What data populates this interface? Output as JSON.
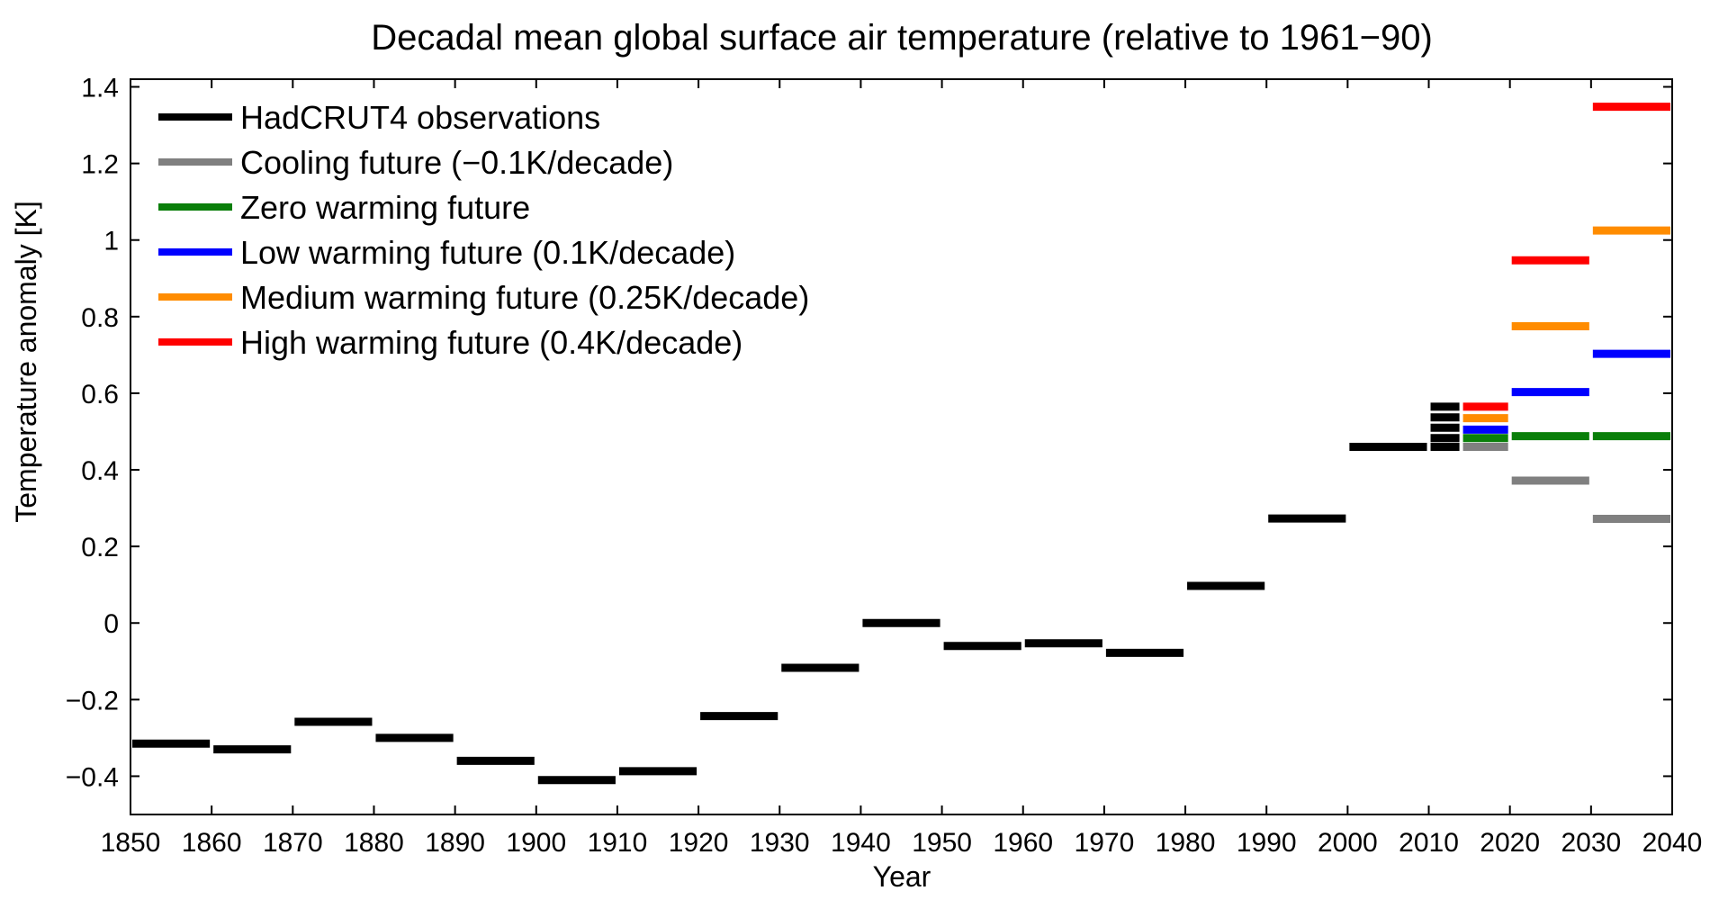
{
  "chart_data": {
    "type": "line",
    "title": "Decadal mean global surface air temperature (relative to 1961−90)",
    "xlabel": "Year",
    "ylabel": "Temperature anomaly  [K]",
    "xlim": [
      1850,
      2040
    ],
    "ylim": [
      -0.5,
      1.42
    ],
    "xticks": [
      1850,
      1860,
      1870,
      1880,
      1890,
      1900,
      1910,
      1920,
      1930,
      1940,
      1950,
      1960,
      1970,
      1980,
      1990,
      2000,
      2010,
      2020,
      2030,
      2040
    ],
    "yticks": [
      -0.4,
      -0.2,
      0,
      0.2,
      0.4,
      0.6,
      0.8,
      1,
      1.2,
      1.4
    ],
    "ytick_labels": [
      "−0.4",
      "−0.2",
      "0",
      "0.2",
      "0.4",
      "0.6",
      "0.8",
      "1",
      "1.2",
      "1.4"
    ],
    "grid": false,
    "legend_position": "top-left",
    "series": [
      {
        "name": "HadCRUT4 observations",
        "color": "#000000",
        "segments": [
          {
            "x": [
              1850,
              1860
            ],
            "y": -0.315
          },
          {
            "x": [
              1860,
              1870
            ],
            "y": -0.33
          },
          {
            "x": [
              1870,
              1880
            ],
            "y": -0.258
          },
          {
            "x": [
              1880,
              1890
            ],
            "y": -0.3
          },
          {
            "x": [
              1890,
              1900
            ],
            "y": -0.36
          },
          {
            "x": [
              1900,
              1910
            ],
            "y": -0.41
          },
          {
            "x": [
              1910,
              1920
            ],
            "y": -0.387
          },
          {
            "x": [
              1920,
              1930
            ],
            "y": -0.243
          },
          {
            "x": [
              1930,
              1940
            ],
            "y": -0.117
          },
          {
            "x": [
              1940,
              1950
            ],
            "y": 0.0
          },
          {
            "x": [
              1950,
              1960
            ],
            "y": -0.06
          },
          {
            "x": [
              1960,
              1970
            ],
            "y": -0.053
          },
          {
            "x": [
              1970,
              1980
            ],
            "y": -0.078
          },
          {
            "x": [
              1980,
              1990
            ],
            "y": 0.097
          },
          {
            "x": [
              1990,
              2000
            ],
            "y": 0.273
          },
          {
            "x": [
              2000,
              2010
            ],
            "y": 0.46
          },
          {
            "x": [
              2010,
              2014
            ],
            "y": 0.46
          },
          {
            "x": [
              2010,
              2014
            ],
            "y": 0.483
          },
          {
            "x": [
              2010,
              2014
            ],
            "y": 0.51
          },
          {
            "x": [
              2010,
              2014
            ],
            "y": 0.537
          },
          {
            "x": [
              2010,
              2014
            ],
            "y": 0.565
          }
        ]
      },
      {
        "name": "Cooling future (−0.1K/decade)",
        "color": "#808080",
        "segments": [
          {
            "x": [
              2014,
              2020
            ],
            "y": 0.46
          },
          {
            "x": [
              2020,
              2030
            ],
            "y": 0.372
          },
          {
            "x": [
              2030,
              2040
            ],
            "y": 0.272
          }
        ]
      },
      {
        "name": "Zero warming future",
        "color": "#0a7f0a",
        "segments": [
          {
            "x": [
              2014,
              2020
            ],
            "y": 0.483
          },
          {
            "x": [
              2020,
              2030
            ],
            "y": 0.488
          },
          {
            "x": [
              2030,
              2040
            ],
            "y": 0.488
          }
        ]
      },
      {
        "name": "Low warming future (0.1K/decade)",
        "color": "#0000ff",
        "segments": [
          {
            "x": [
              2014,
              2020
            ],
            "y": 0.505
          },
          {
            "x": [
              2020,
              2030
            ],
            "y": 0.603
          },
          {
            "x": [
              2030,
              2040
            ],
            "y": 0.703
          }
        ]
      },
      {
        "name": "Medium warming future (0.25K/decade)",
        "color": "#ff8c00",
        "segments": [
          {
            "x": [
              2014,
              2020
            ],
            "y": 0.535
          },
          {
            "x": [
              2020,
              2030
            ],
            "y": 0.775
          },
          {
            "x": [
              2030,
              2040
            ],
            "y": 1.025
          }
        ]
      },
      {
        "name": "High warming future (0.4K/decade)",
        "color": "#ff0000",
        "segments": [
          {
            "x": [
              2014,
              2020
            ],
            "y": 0.565
          },
          {
            "x": [
              2020,
              2030
            ],
            "y": 0.947
          },
          {
            "x": [
              2030,
              2040
            ],
            "y": 1.348
          }
        ]
      }
    ]
  }
}
